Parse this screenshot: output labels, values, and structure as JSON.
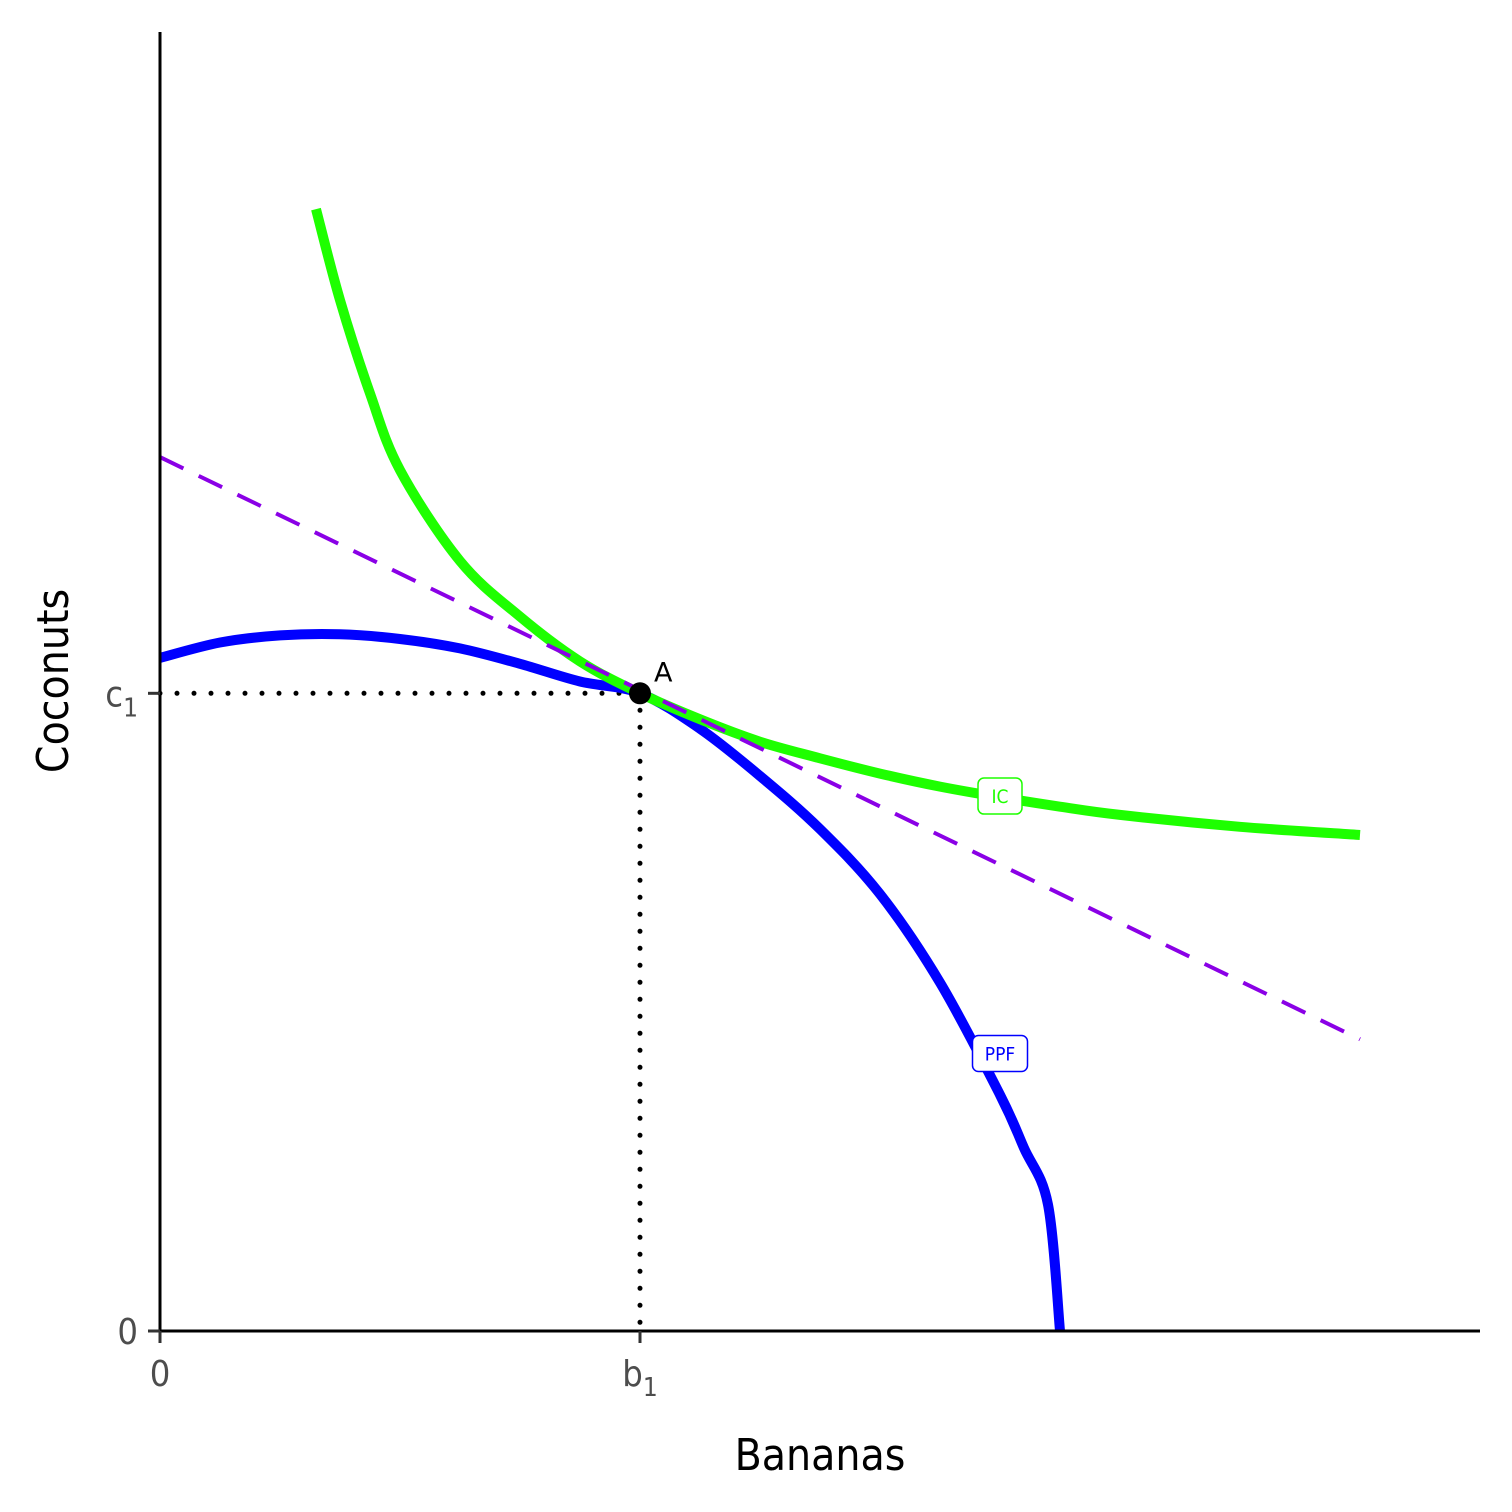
{
  "chart_data": {
    "type": "line",
    "title": "",
    "xlabel": "Bananas",
    "ylabel": "Coconuts",
    "xlim": [
      0,
      11
    ],
    "ylim": [
      0,
      11
    ],
    "grid": false,
    "x_ticks": [
      {
        "value": 0,
        "label": "0",
        "sub": ""
      },
      {
        "value": 4,
        "label": "b",
        "sub": "1"
      }
    ],
    "y_ticks": [
      {
        "value": 0,
        "label": "0",
        "sub": ""
      },
      {
        "value": 5.4,
        "label": "c",
        "sub": "1"
      }
    ],
    "series": [
      {
        "name": "PPF",
        "color": "#0000ff",
        "style": "solid",
        "x": [
          0,
          0.5,
          1.0,
          1.5,
          2.0,
          2.5,
          3.0,
          3.5,
          4.0,
          4.5,
          5.0,
          5.5,
          6.0,
          6.5,
          7.0,
          7.2,
          7.4,
          7.5
        ],
        "y": [
          5.7,
          5.83,
          5.89,
          5.9,
          5.86,
          5.78,
          5.65,
          5.5,
          5.4,
          5.1,
          4.7,
          4.25,
          3.7,
          2.95,
          2.0,
          1.55,
          1.07,
          0
        ]
      },
      {
        "name": "IC",
        "color": "#1eff00",
        "style": "solid",
        "x": [
          1.3,
          1.5,
          1.75,
          2.0,
          2.5,
          3.0,
          3.5,
          4.0,
          4.5,
          5.0,
          5.5,
          6.0,
          6.5,
          7.0,
          7.5,
          8.0,
          9.0,
          10.0
        ],
        "y": [
          9.5,
          8.73,
          7.94,
          7.29,
          6.52,
          6.05,
          5.67,
          5.4,
          5.18,
          4.99,
          4.85,
          4.72,
          4.61,
          4.52,
          4.44,
          4.37,
          4.27,
          4.2
        ]
      },
      {
        "name": "",
        "color": "#8a00e6",
        "style": "dashed",
        "x": [
          0,
          10
        ],
        "y": [
          7.4,
          2.47
        ]
      }
    ],
    "labels": [
      {
        "text": "IC",
        "x": 7.0,
        "y": 4.53,
        "color": "#1eff00"
      },
      {
        "text": "PPF",
        "x": 7.0,
        "y": 2.35,
        "color": "#0000ff"
      }
    ],
    "point": {
      "label": "A",
      "x": 4,
      "y": 5.4,
      "color": "#000000"
    },
    "guides": {
      "x": 4,
      "y": 5.4,
      "style": "dotted"
    }
  }
}
